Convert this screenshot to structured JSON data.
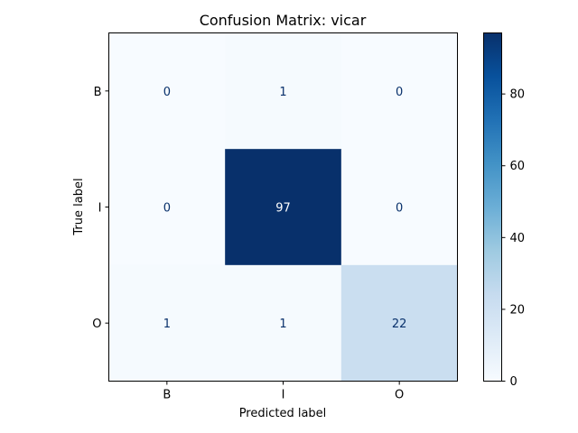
{
  "chart_data": {
    "type": "heatmap",
    "title": "Confusion Matrix: vicar",
    "xlabel": "Predicted label",
    "ylabel": "True label",
    "x_categories": [
      "B",
      "I",
      "O"
    ],
    "y_categories": [
      "B",
      "I",
      "O"
    ],
    "values": [
      [
        0,
        1,
        0
      ],
      [
        0,
        97,
        0
      ],
      [
        1,
        1,
        22
      ]
    ],
    "colormap": "Blues",
    "vmin": 0,
    "vmax": 97,
    "colorbar_ticks": [
      0,
      20,
      40,
      60,
      80
    ],
    "text_color_light": "#ffffff",
    "text_color_dark": "#08306b"
  }
}
